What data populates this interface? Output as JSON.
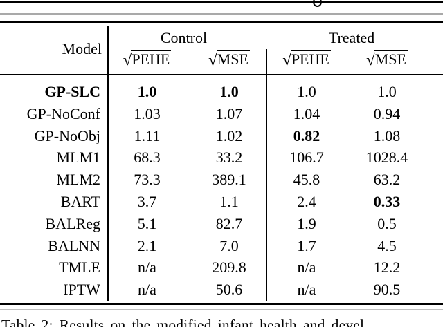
{
  "page": {
    "background": "#ffffff",
    "text_color": "#000000",
    "rule_color": "#000000"
  },
  "artifact": {
    "clipped_glyph_above_table": "g"
  },
  "table": {
    "header": {
      "model_label": "Model",
      "radical": "√",
      "groups": [
        {
          "label": "Control",
          "metrics": [
            "PEHE",
            "MSE"
          ]
        },
        {
          "label": "Treated",
          "metrics": [
            "PEHE",
            "MSE"
          ]
        }
      ]
    },
    "columns": [
      "Model",
      "Control √PEHE",
      "Control √MSE",
      "Treated √PEHE",
      "Treated √MSE"
    ],
    "rows": [
      {
        "model": "GP-SLC",
        "model_bold": true,
        "values": [
          "1.0",
          "1.0",
          "1.0",
          "1.0"
        ],
        "bold": [
          true,
          true,
          false,
          false
        ]
      },
      {
        "model": "GP-NoConf",
        "model_bold": false,
        "values": [
          "1.03",
          "1.07",
          "1.04",
          "0.94"
        ],
        "bold": [
          false,
          false,
          false,
          false
        ]
      },
      {
        "model": "GP-NoObj",
        "model_bold": false,
        "values": [
          "1.11",
          "1.02",
          "0.82",
          "1.08"
        ],
        "bold": [
          false,
          false,
          true,
          false
        ]
      },
      {
        "model": "MLM1",
        "model_bold": false,
        "values": [
          "68.3",
          "33.2",
          "106.7",
          "1028.4"
        ],
        "bold": [
          false,
          false,
          false,
          false
        ]
      },
      {
        "model": "MLM2",
        "model_bold": false,
        "values": [
          "73.3",
          "389.1",
          "45.8",
          "63.2"
        ],
        "bold": [
          false,
          false,
          false,
          false
        ]
      },
      {
        "model": "BART",
        "model_bold": false,
        "values": [
          "3.7",
          "1.1",
          "2.4",
          "0.33"
        ],
        "bold": [
          false,
          false,
          false,
          true
        ]
      },
      {
        "model": "BALReg",
        "model_bold": false,
        "values": [
          "5.1",
          "82.7",
          "1.9",
          "0.5"
        ],
        "bold": [
          false,
          false,
          false,
          false
        ]
      },
      {
        "model": "BALNN",
        "model_bold": false,
        "values": [
          "2.1",
          "7.0",
          "1.7",
          "4.5"
        ],
        "bold": [
          false,
          false,
          false,
          false
        ]
      },
      {
        "model": "TMLE",
        "model_bold": false,
        "values": [
          "n/a",
          "209.8",
          "n/a",
          "12.2"
        ],
        "bold": [
          false,
          false,
          false,
          false
        ]
      },
      {
        "model": "IPTW",
        "model_bold": false,
        "values": [
          "n/a",
          "50.6",
          "n/a",
          "90.5"
        ],
        "bold": [
          false,
          false,
          false,
          false
        ]
      }
    ]
  },
  "caption": {
    "text": "Table 2: Results on the modified infant health and devel"
  }
}
